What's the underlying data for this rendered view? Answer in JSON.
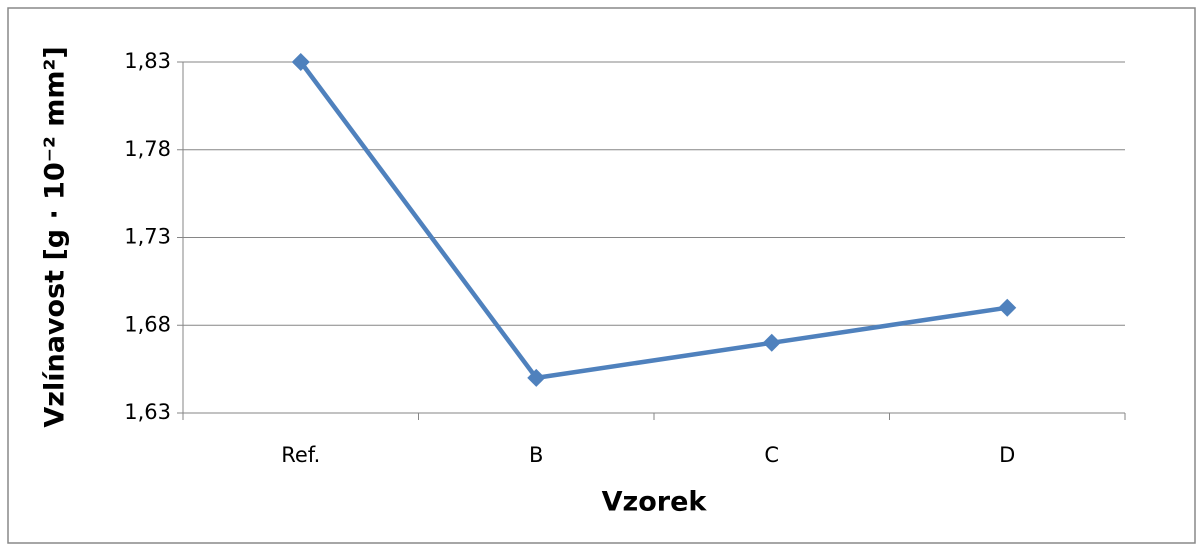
{
  "chart_data": {
    "type": "line",
    "categories": [
      "Ref.",
      "B",
      "C",
      "D"
    ],
    "series": [
      {
        "name": "Vzlínavost",
        "color": "#4f81bd",
        "values": [
          1.83,
          1.65,
          1.67,
          1.69
        ]
      }
    ],
    "ylim": [
      1.63,
      1.83
    ],
    "yticks": [
      {
        "value": 1.63,
        "label": "1,63"
      },
      {
        "value": 1.68,
        "label": "1,68"
      },
      {
        "value": 1.73,
        "label": "1,73"
      },
      {
        "value": 1.78,
        "label": "1,78"
      },
      {
        "value": 1.83,
        "label": "1,83"
      }
    ],
    "ylabel": "Vzlínavost [g · 10⁻² mm²]",
    "xlabel": "Vzorek",
    "grid": true
  }
}
